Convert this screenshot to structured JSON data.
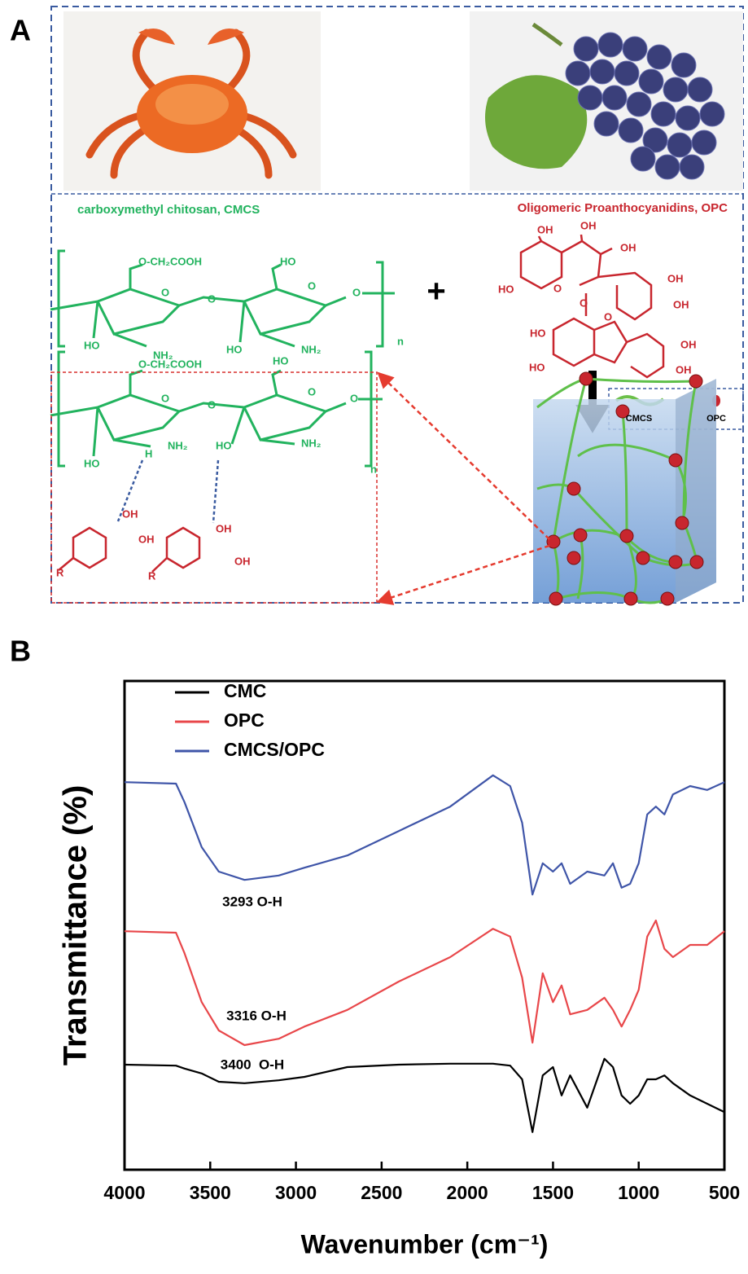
{
  "panel_labels": [
    "A",
    "B"
  ],
  "panel_a": {
    "cmcs_title": "carboxymethyl chitosan, CMCS",
    "opc_title": "Oligomeric Proanthocyanidins, OPC",
    "plus": "+",
    "cmcs_labels": [
      "O-CH₂COOH",
      "O",
      "O",
      "HO",
      "O",
      "O",
      "HO",
      "NH₂",
      "HO",
      "NH₂",
      "n"
    ],
    "opc_labels": [
      "OH",
      "OH",
      "OH",
      "HO",
      "O",
      "O",
      "OH",
      "OH",
      "HO",
      "O",
      "OH",
      "OH",
      "HO"
    ],
    "complex_labels": [
      "O-CH₂COOH",
      "O",
      "O",
      "HO",
      "O",
      "O",
      "HO",
      "H",
      "NH₂",
      "HO",
      "NH₂",
      "n",
      "OH",
      "OH",
      "R",
      "OH",
      "OH",
      "R"
    ],
    "legend": [
      "CMCS",
      "OPC"
    ]
  },
  "chart_data": {
    "type": "line",
    "x_label": "Wavenumber (cm⁻¹)",
    "y_label": "Transmittance (%)",
    "x": [
      4000,
      3700,
      3650,
      3550,
      3450,
      3300,
      3100,
      2950,
      2700,
      2400,
      2100,
      1850,
      1750,
      1680,
      1620,
      1560,
      1500,
      1450,
      1400,
      1300,
      1200,
      1150,
      1100,
      1050,
      1000,
      950,
      900,
      850,
      800,
      700,
      600,
      500
    ],
    "xlim": [
      4000,
      500
    ],
    "xticks": [
      4000,
      3500,
      3000,
      2500,
      2000,
      1500,
      1000,
      500
    ],
    "ylim": [
      0,
      100
    ],
    "series": [
      {
        "name": "CMC",
        "color": "#000000",
        "values": [
          21.5,
          21.3,
          20.7,
          19.7,
          18.0,
          17.7,
          18.3,
          19.0,
          21.0,
          21.5,
          21.7,
          21.7,
          21.3,
          18.5,
          7.7,
          19.3,
          21.0,
          15.2,
          19.3,
          12.7,
          22.7,
          21.0,
          15.2,
          13.5,
          15.2,
          18.5,
          18.5,
          19.3,
          17.7,
          15.2,
          13.5,
          11.8
        ]
      },
      {
        "name": "OPC",
        "color": "#e8474a",
        "values": [
          48.8,
          48.5,
          44.3,
          34.3,
          28.5,
          25.5,
          26.8,
          29.3,
          32.7,
          38.5,
          43.5,
          49.3,
          47.7,
          39.3,
          26.0,
          40.2,
          34.3,
          37.7,
          31.8,
          32.7,
          35.2,
          32.7,
          29.3,
          32.7,
          36.8,
          47.7,
          51.0,
          45.2,
          43.5,
          46.0,
          46.0,
          48.8
        ]
      },
      {
        "name": "CMCS/OPC",
        "color": "#3f55a8",
        "values": [
          79.3,
          79.0,
          75.2,
          66.0,
          61.0,
          59.3,
          60.2,
          61.8,
          64.3,
          69.3,
          74.3,
          80.7,
          78.5,
          71.0,
          56.3,
          62.7,
          61.0,
          62.7,
          58.5,
          61.0,
          60.2,
          62.7,
          57.7,
          58.5,
          62.7,
          72.7,
          74.3,
          72.7,
          76.8,
          78.5,
          77.7,
          79.3
        ]
      }
    ],
    "annotations": [
      "3293 O-H",
      "3316 O-H",
      "3400  O-H"
    ]
  }
}
